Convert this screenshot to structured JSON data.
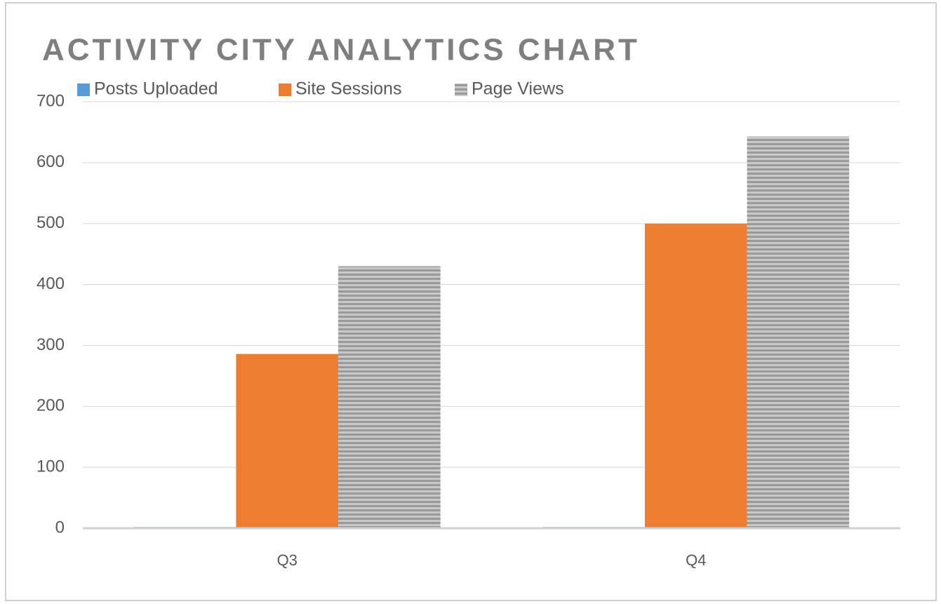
{
  "chart_data": {
    "type": "bar",
    "title": "ACTIVITY CITY ANALYTICS CHART",
    "categories": [
      "Q3",
      "Q4"
    ],
    "series": [
      {
        "name": "Posts Uploaded",
        "color": "#5b9bd5",
        "values": [
          2,
          2
        ]
      },
      {
        "name": "Site Sessions",
        "color": "#ed7d31",
        "values": [
          286,
          500
        ]
      },
      {
        "name": "Page Views",
        "color": "#a5a5a5",
        "pattern": "horizontal-stripes",
        "values": [
          430,
          643
        ]
      }
    ],
    "ylim": [
      0,
      700
    ],
    "yticks": [
      0,
      100,
      200,
      300,
      400,
      500,
      600,
      700
    ],
    "grid": true,
    "legend": "top"
  }
}
